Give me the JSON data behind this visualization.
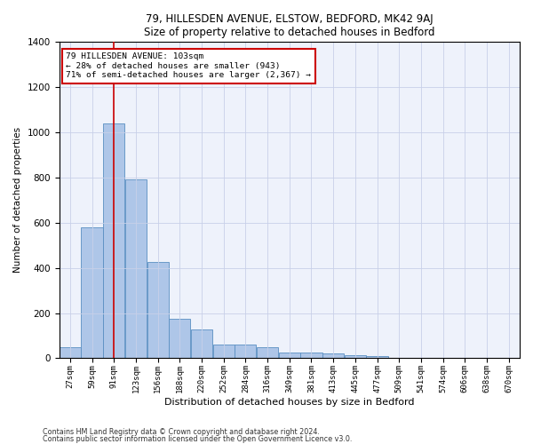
{
  "title1": "79, HILLESDEN AVENUE, ELSTOW, BEDFORD, MK42 9AJ",
  "title2": "Size of property relative to detached houses in Bedford",
  "xlabel": "Distribution of detached houses by size in Bedford",
  "ylabel": "Number of detached properties",
  "bar_labels": [
    "27sqm",
    "59sqm",
    "91sqm",
    "123sqm",
    "156sqm",
    "188sqm",
    "220sqm",
    "252sqm",
    "284sqm",
    "316sqm",
    "349sqm",
    "381sqm",
    "413sqm",
    "445sqm",
    "477sqm",
    "509sqm",
    "541sqm",
    "574sqm",
    "606sqm",
    "638sqm",
    "670sqm"
  ],
  "bar_values": [
    47,
    578,
    1040,
    790,
    425,
    175,
    128,
    60,
    60,
    47,
    27,
    27,
    20,
    13,
    10,
    0,
    0,
    0,
    0,
    0,
    0
  ],
  "bar_color": "#aec6e8",
  "bar_edge_color": "#5a8fc2",
  "vline_x": 2,
  "vline_color": "#cc0000",
  "annotation_line1": "79 HILLESDEN AVENUE: 103sqm",
  "annotation_line2": "← 28% of detached houses are smaller (943)",
  "annotation_line3": "71% of semi-detached houses are larger (2,367) →",
  "annotation_box_color": "#ffffff",
  "annotation_box_edge": "#cc0000",
  "ylim": [
    0,
    1400
  ],
  "yticks": [
    0,
    200,
    400,
    600,
    800,
    1000,
    1200,
    1400
  ],
  "footer1": "Contains HM Land Registry data © Crown copyright and database right 2024.",
  "footer2": "Contains public sector information licensed under the Open Government Licence v3.0.",
  "bg_color": "#eef2fb",
  "grid_color": "#c8d0e8"
}
